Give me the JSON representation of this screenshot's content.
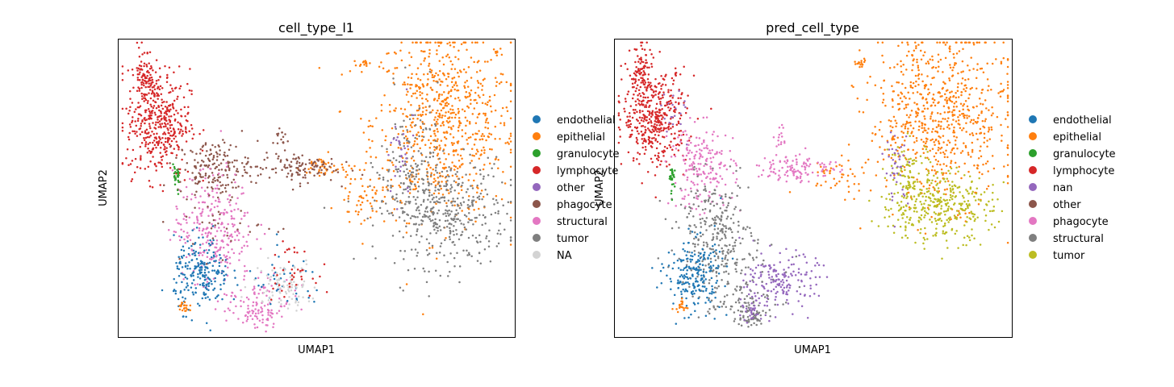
{
  "chart_data": [
    {
      "type": "scatter",
      "title": "cell_type_l1",
      "xlabel": "UMAP1",
      "ylabel": "UMAP2",
      "xticks": [],
      "yticks": [],
      "grid": false,
      "legend_position": "right",
      "legend": [
        {
          "label": "endothelial",
          "color": "#1f77b4"
        },
        {
          "label": "epithelial",
          "color": "#ff7f0e"
        },
        {
          "label": "granulocyte",
          "color": "#2ca02c"
        },
        {
          "label": "lymphocyte",
          "color": "#d62728"
        },
        {
          "label": "other",
          "color": "#9467bd"
        },
        {
          "label": "phagocyte",
          "color": "#8c564b"
        },
        {
          "label": "structural",
          "color": "#e377c2"
        },
        {
          "label": "tumor",
          "color": "#7f7f7f"
        },
        {
          "label": "NA",
          "color": "#d3d3d3"
        }
      ],
      "xlim": [
        0,
        100
      ],
      "ylim": [
        0,
        100
      ],
      "clusters": [
        {
          "series": "epithelial",
          "x": 82,
          "y": 72,
          "sx": 9,
          "sy": 16,
          "n": 750
        },
        {
          "series": "tumor",
          "x": 82,
          "y": 42,
          "sx": 8,
          "sy": 9,
          "n": 420
        },
        {
          "series": "tumor",
          "x": 74,
          "y": 58,
          "sx": 4,
          "sy": 12,
          "n": 120
        },
        {
          "series": "other",
          "x": 71,
          "y": 60,
          "sx": 2,
          "sy": 8,
          "n": 30
        },
        {
          "series": "epithelial",
          "x": 52,
          "y": 57,
          "sx": 3,
          "sy": 2,
          "n": 40
        },
        {
          "series": "epithelial",
          "x": 61,
          "y": 47,
          "sx": 3,
          "sy": 4,
          "n": 50
        },
        {
          "series": "epithelial",
          "x": 62,
          "y": 92,
          "sx": 0.8,
          "sy": 0.6,
          "n": 12
        },
        {
          "series": "lymphocyte",
          "x": 10,
          "y": 72,
          "sx": 4,
          "sy": 9,
          "n": 420
        },
        {
          "series": "lymphocyte",
          "x": 6.5,
          "y": 88,
          "sx": 1.3,
          "sy": 5,
          "n": 90
        },
        {
          "series": "phagocyte",
          "x": 24,
          "y": 57,
          "sx": 4.5,
          "sy": 4.5,
          "n": 170
        },
        {
          "series": "phagocyte",
          "x": 45,
          "y": 57,
          "sx": 5,
          "sy": 2.5,
          "n": 110
        },
        {
          "series": "phagocyte",
          "x": 41,
          "y": 67,
          "sx": 1,
          "sy": 2,
          "n": 15
        },
        {
          "series": "structural",
          "x": 24,
          "y": 37,
          "sx": 5,
          "sy": 9,
          "n": 270
        },
        {
          "series": "structural",
          "x": 34,
          "y": 14,
          "sx": 5,
          "sy": 4,
          "n": 80
        },
        {
          "series": "structural",
          "x": 35,
          "y": 7,
          "sx": 2.5,
          "sy": 2,
          "n": 50
        },
        {
          "series": "endothelial",
          "x": 21,
          "y": 21,
          "sx": 3.5,
          "sy": 6,
          "n": 220
        },
        {
          "series": "endothelial",
          "x": 42,
          "y": 18,
          "sx": 5,
          "sy": 5,
          "n": 40
        },
        {
          "series": "granulocyte",
          "x": 14.5,
          "y": 53,
          "sx": 0.6,
          "sy": 2.5,
          "n": 25
        },
        {
          "series": "epithelial",
          "x": 16.5,
          "y": 10,
          "sx": 0.7,
          "sy": 1.5,
          "n": 20
        },
        {
          "series": "NA",
          "x": 42,
          "y": 18,
          "sx": 4,
          "sy": 4,
          "n": 90
        },
        {
          "series": "lymphocyte",
          "x": 43,
          "y": 22,
          "sx": 3,
          "sy": 4,
          "n": 40
        },
        {
          "series": "phagocyte",
          "x": 28,
          "y": 40,
          "sx": 6,
          "sy": 8,
          "n": 40
        }
      ]
    },
    {
      "type": "scatter",
      "title": "pred_cell_type",
      "xlabel": "UMAP1",
      "ylabel": "UMAP2",
      "xticks": [],
      "yticks": [],
      "grid": false,
      "legend_position": "right",
      "legend": [
        {
          "label": "endothelial",
          "color": "#1f77b4"
        },
        {
          "label": "epithelial",
          "color": "#ff7f0e"
        },
        {
          "label": "granulocyte",
          "color": "#2ca02c"
        },
        {
          "label": "lymphocyte",
          "color": "#d62728"
        },
        {
          "label": "nan",
          "color": "#9467bd"
        },
        {
          "label": "other",
          "color": "#8c564b"
        },
        {
          "label": "phagocyte",
          "color": "#e377c2"
        },
        {
          "label": "structural",
          "color": "#7f7f7f"
        },
        {
          "label": "tumor",
          "color": "#bcbd22"
        }
      ],
      "xlim": [
        0,
        100
      ],
      "ylim": [
        0,
        100
      ],
      "clusters": [
        {
          "series": "epithelial",
          "x": 82,
          "y": 74,
          "sx": 9,
          "sy": 14,
          "n": 720
        },
        {
          "series": "tumor",
          "x": 81,
          "y": 44,
          "sx": 7,
          "sy": 6,
          "n": 360
        },
        {
          "series": "tumor",
          "x": 74,
          "y": 55,
          "sx": 3,
          "sy": 6,
          "n": 70
        },
        {
          "series": "nan",
          "x": 71,
          "y": 57,
          "sx": 1.5,
          "sy": 6,
          "n": 40
        },
        {
          "series": "epithelial",
          "x": 56,
          "y": 54,
          "sx": 5,
          "sy": 3,
          "n": 40
        },
        {
          "series": "epithelial",
          "x": 62,
          "y": 92,
          "sx": 0.8,
          "sy": 0.6,
          "n": 12
        },
        {
          "series": "lymphocyte",
          "x": 10,
          "y": 74,
          "sx": 4,
          "sy": 8,
          "n": 420
        },
        {
          "series": "lymphocyte",
          "x": 6.5,
          "y": 88,
          "sx": 1.3,
          "sy": 5,
          "n": 80
        },
        {
          "series": "phagocyte",
          "x": 22,
          "y": 57,
          "sx": 4,
          "sy": 7,
          "n": 190
        },
        {
          "series": "phagocyte",
          "x": 46,
          "y": 57,
          "sx": 5,
          "sy": 2.5,
          "n": 110
        },
        {
          "series": "phagocyte",
          "x": 42,
          "y": 67,
          "sx": 1,
          "sy": 2,
          "n": 15
        },
        {
          "series": "structural",
          "x": 25,
          "y": 35,
          "sx": 4.5,
          "sy": 9,
          "n": 260
        },
        {
          "series": "structural",
          "x": 30,
          "y": 12,
          "sx": 5,
          "sy": 4,
          "n": 70
        },
        {
          "series": "structural",
          "x": 34,
          "y": 7,
          "sx": 2,
          "sy": 2,
          "n": 50
        },
        {
          "series": "nan",
          "x": 42,
          "y": 19,
          "sx": 4.5,
          "sy": 4.5,
          "n": 170
        },
        {
          "series": "nan",
          "x": 35,
          "y": 9,
          "sx": 2,
          "sy": 2,
          "n": 30
        },
        {
          "series": "endothelial",
          "x": 20,
          "y": 21,
          "sx": 3.5,
          "sy": 6,
          "n": 220
        },
        {
          "series": "granulocyte",
          "x": 14.5,
          "y": 53,
          "sx": 0.6,
          "sy": 2.5,
          "n": 25
        },
        {
          "series": "epithelial",
          "x": 16.5,
          "y": 10,
          "sx": 0.7,
          "sy": 1.5,
          "n": 20
        },
        {
          "series": "structural",
          "x": 32,
          "y": 25,
          "sx": 5,
          "sy": 6,
          "n": 50
        },
        {
          "series": "nan",
          "x": 15,
          "y": 76,
          "sx": 2,
          "sy": 5,
          "n": 20
        }
      ]
    }
  ]
}
